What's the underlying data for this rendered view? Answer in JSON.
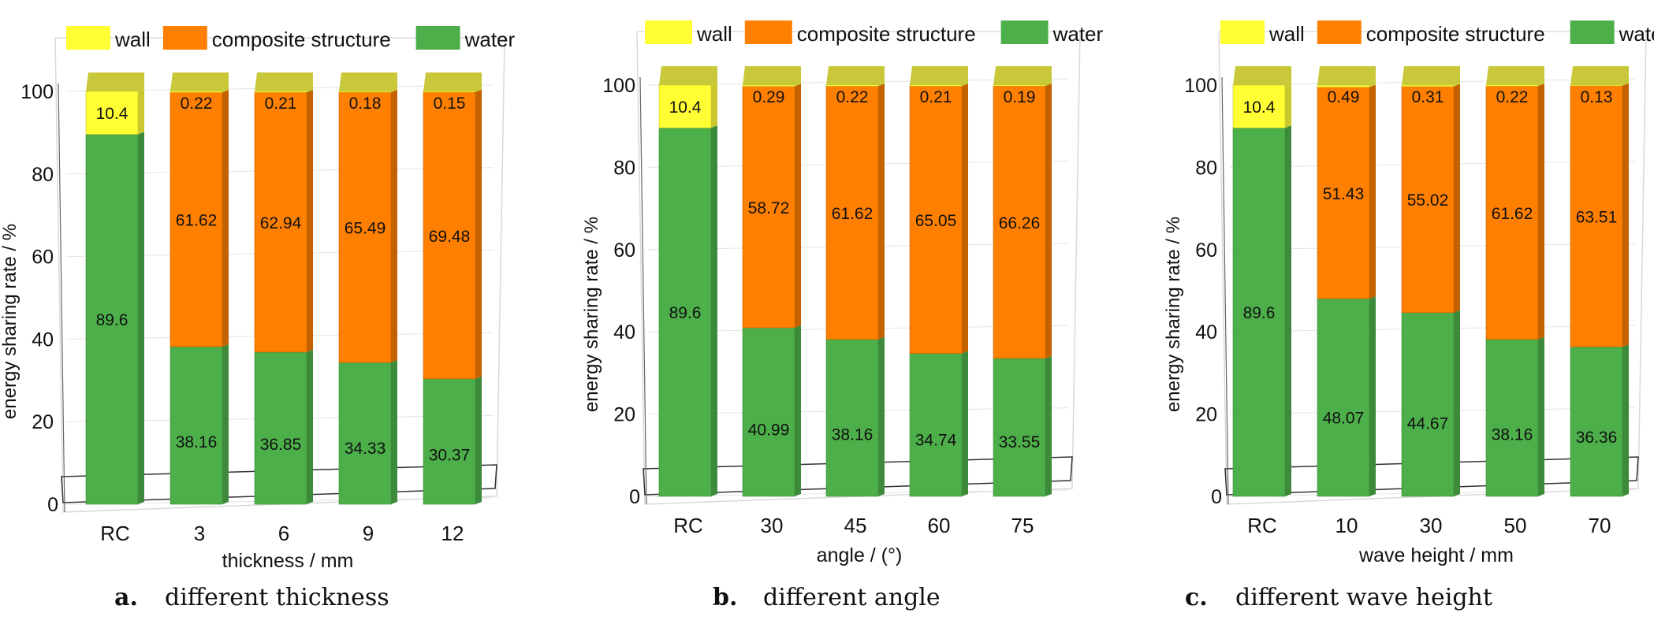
{
  "colors": {
    "wall": "#ffff33",
    "wall_top": "#c8c83a",
    "composite structure": "#ff7f00",
    "composite_side": "#c56200",
    "water": "#4daf4a",
    "water_side": "#3d8b3a"
  },
  "chart_data": [
    {
      "type": "bar",
      "stacked": true,
      "panel_letter": "a.",
      "caption": "different thickness",
      "xlabel": "thickness / mm",
      "ylabel": "energy sharing rate / %",
      "ylim": [
        0,
        100
      ],
      "yticks": [
        "0",
        "20",
        "40",
        "60",
        "80",
        "100"
      ],
      "legend": [
        "wall",
        "composite structure",
        "water"
      ],
      "legend_position": "top",
      "categories": [
        "RC",
        "3",
        "6",
        "9",
        "12"
      ],
      "series": [
        {
          "name": "water",
          "values": [
            89.6,
            38.16,
            36.85,
            34.33,
            30.37
          ],
          "labels": [
            "89.6",
            "38.16",
            "36.85",
            "34.33",
            "30.37"
          ]
        },
        {
          "name": "composite structure",
          "values": [
            0,
            61.62,
            62.94,
            65.49,
            69.48
          ],
          "labels": [
            "",
            "61.62",
            "62.94",
            "65.49",
            "69.48"
          ]
        },
        {
          "name": "wall",
          "values": [
            10.4,
            0.22,
            0.21,
            0.18,
            0.15
          ],
          "labels": [
            "10.4",
            "0.22",
            "0.21",
            "0.18",
            "0.15"
          ]
        }
      ]
    },
    {
      "type": "bar",
      "stacked": true,
      "panel_letter": "b.",
      "caption": "different angle",
      "xlabel": "angle / (°)",
      "ylabel": "energy sharing rate / %",
      "ylim": [
        0,
        100
      ],
      "yticks": [
        "0",
        "20",
        "40",
        "60",
        "80",
        "100"
      ],
      "legend": [
        "wall",
        "composite structure",
        "water"
      ],
      "legend_position": "top",
      "categories": [
        "RC",
        "30",
        "45",
        "60",
        "75"
      ],
      "series": [
        {
          "name": "water",
          "values": [
            89.6,
            40.99,
            38.16,
            34.74,
            33.55
          ],
          "labels": [
            "89.6",
            "40.99",
            "38.16",
            "34.74",
            "33.55"
          ]
        },
        {
          "name": "composite structure",
          "values": [
            0,
            58.72,
            61.62,
            65.05,
            66.26
          ],
          "labels": [
            "",
            "58.72",
            "61.62",
            "65.05",
            "66.26"
          ]
        },
        {
          "name": "wall",
          "values": [
            10.4,
            0.29,
            0.22,
            0.21,
            0.19
          ],
          "labels": [
            "10.4",
            "0.29",
            "0.22",
            "0.21",
            "0.19"
          ]
        }
      ]
    },
    {
      "type": "bar",
      "stacked": true,
      "panel_letter": "c.",
      "caption": "different wave height",
      "xlabel": "wave height / mm",
      "ylabel": "energy sharing rate / %",
      "ylim": [
        0,
        100
      ],
      "yticks": [
        "0",
        "20",
        "40",
        "60",
        "80",
        "100"
      ],
      "legend": [
        "wall",
        "composite structure",
        "water"
      ],
      "legend_position": "top",
      "categories": [
        "RC",
        "10",
        "30",
        "50",
        "70"
      ],
      "series": [
        {
          "name": "water",
          "values": [
            89.6,
            48.07,
            44.67,
            38.16,
            36.36
          ],
          "labels": [
            "89.6",
            "48.07",
            "44.67",
            "38.16",
            "36.36"
          ]
        },
        {
          "name": "composite structure",
          "values": [
            0,
            51.43,
            55.02,
            61.62,
            63.51
          ],
          "labels": [
            "",
            "51.43",
            "55.02",
            "61.62",
            "63.51"
          ]
        },
        {
          "name": "wall",
          "values": [
            10.4,
            0.49,
            0.31,
            0.22,
            0.13
          ],
          "labels": [
            "10.4",
            "0.49",
            "0.31",
            "0.22",
            "0.13"
          ]
        }
      ]
    }
  ]
}
